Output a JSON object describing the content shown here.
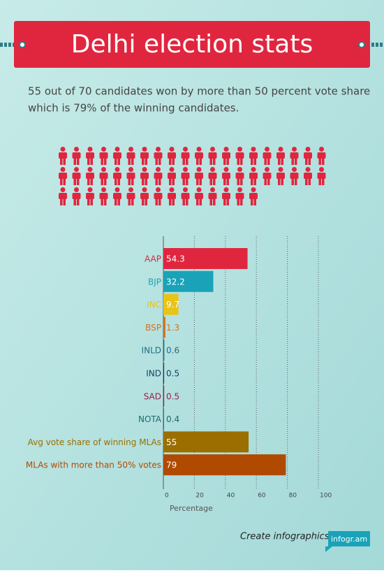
{
  "header": {
    "title": "Delhi election stats"
  },
  "intro": {
    "lines": [
      "55 out of 70 candidates won by more than 50 percent vote share",
      "which is 79% of the winning candidates."
    ]
  },
  "pictogram": {
    "count": 55,
    "color": "#e0263f"
  },
  "chart_data": {
    "type": "bar",
    "orientation": "horizontal",
    "categories": [
      "AAP",
      "BJP",
      "INC",
      "BSP",
      "INLD",
      "IND",
      "SAD",
      "NOTA",
      "Avg vote share of winning MLAs",
      "MLAs with more than 50% votes"
    ],
    "values": [
      54.3,
      32.2,
      9.7,
      1.3,
      0.6,
      0.5,
      0.5,
      0.4,
      55,
      79
    ],
    "colors": [
      "#e0263f",
      "#1aa3b8",
      "#e8c416",
      "#d4711c",
      "#1f6f86",
      "#183f66",
      "#9c1a4a",
      "#1e6a6e",
      "#9b6e00",
      "#b04a00"
    ],
    "xlim": [
      0,
      100
    ],
    "xticks": [
      0,
      20,
      40,
      60,
      80,
      100
    ],
    "x_label": "Percentage",
    "grid": true
  },
  "footer": {
    "tagline": "Create infographics",
    "brand": "infogr.am"
  }
}
